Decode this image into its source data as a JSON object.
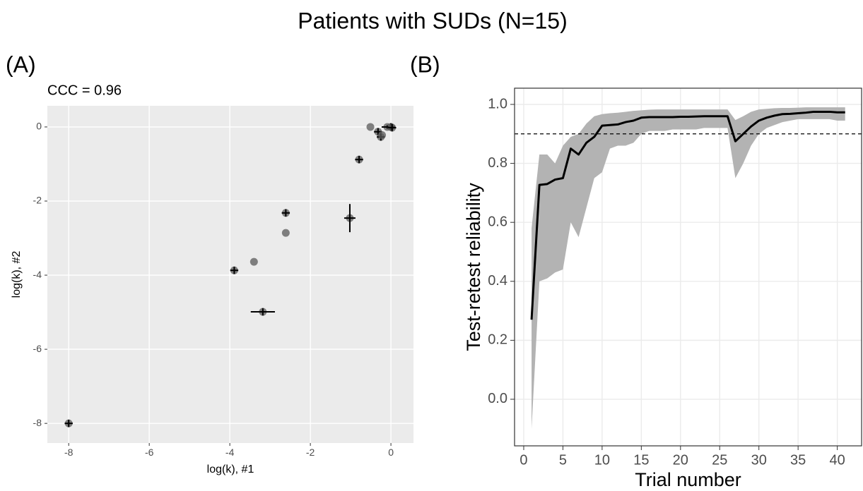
{
  "title": "Patients with SUDs (N=15)",
  "chart_data": [
    {
      "type": "scatter",
      "panel": "(A)",
      "subtitle": "CCC = 0.96",
      "x_label": "log(k), #1",
      "y_label": "log(k), #2",
      "x": [
        -8.0,
        -3.89,
        -3.4,
        -3.18,
        -2.61,
        -2.61,
        -1.02,
        -0.79,
        -0.51,
        -0.32,
        -0.25,
        -0.22,
        -0.09,
        0.0,
        0.03
      ],
      "y": [
        -8.0,
        -3.87,
        -3.64,
        -4.99,
        -2.32,
        -2.86,
        -2.46,
        -0.88,
        0.0,
        -0.13,
        -0.27,
        -0.22,
        0.0,
        0.0,
        -0.02
      ],
      "xerr": [
        0.1,
        0.1,
        0,
        0.3,
        0.1,
        0,
        0.14,
        0.1,
        0,
        0.1,
        0.1,
        0,
        0.14,
        0.1,
        0.1
      ],
      "yerr": [
        0.1,
        0.1,
        0,
        0.1,
        0.1,
        0,
        0.38,
        0.1,
        0,
        0.1,
        0.1,
        0,
        0.05,
        0.1,
        0.1
      ],
      "color": "#595959",
      "error_color": "#000000",
      "xlim": [
        -8.53,
        0.56
      ],
      "ylim": [
        -8.53,
        0.57
      ],
      "xticks": [
        -8,
        -6,
        -4,
        -2,
        0
      ],
      "yticks": [
        -8,
        -6,
        -4,
        -2,
        0
      ],
      "grid": true
    },
    {
      "type": "line",
      "panel": "(B)",
      "x_label": "Trial number",
      "y_label": "Test-retest reliability",
      "x": [
        1,
        2,
        3,
        4,
        5,
        6,
        7,
        8,
        9,
        10,
        11,
        12,
        13,
        14,
        15,
        16,
        17,
        18,
        19,
        20,
        21,
        22,
        23,
        24,
        25,
        26,
        27,
        28,
        29,
        30,
        31,
        32,
        33,
        34,
        35,
        36,
        37,
        38,
        39,
        40,
        41
      ],
      "series": [
        {
          "color": "#000000",
          "values": [
            0.27,
            0.727,
            0.73,
            0.745,
            0.75,
            0.85,
            0.83,
            0.87,
            0.89,
            0.928,
            0.93,
            0.932,
            0.94,
            0.945,
            0.955,
            0.957,
            0.957,
            0.957,
            0.957,
            0.958,
            0.958,
            0.959,
            0.96,
            0.96,
            0.96,
            0.96,
            0.875,
            0.9,
            0.925,
            0.945,
            0.955,
            0.962,
            0.967,
            0.968,
            0.97,
            0.972,
            0.975,
            0.975,
            0.975,
            0.973,
            0.973
          ]
        }
      ],
      "band": {
        "color": "#b3b3b3",
        "upper": [
          0.58,
          0.83,
          0.83,
          0.8,
          0.86,
          0.89,
          0.9,
          0.935,
          0.96,
          0.967,
          0.97,
          0.972,
          0.975,
          0.978,
          0.98,
          0.982,
          0.983,
          0.983,
          0.983,
          0.983,
          0.983,
          0.983,
          0.983,
          0.983,
          0.983,
          0.983,
          0.947,
          0.96,
          0.975,
          0.983,
          0.985,
          0.987,
          0.988,
          0.988,
          0.989,
          0.99,
          0.99,
          0.99,
          0.99,
          0.99,
          0.99
        ],
        "lower": [
          -0.1,
          0.4,
          0.41,
          0.43,
          0.44,
          0.6,
          0.55,
          0.65,
          0.75,
          0.77,
          0.85,
          0.86,
          0.86,
          0.87,
          0.9,
          0.91,
          0.91,
          0.91,
          0.915,
          0.915,
          0.915,
          0.915,
          0.92,
          0.92,
          0.92,
          0.92,
          0.75,
          0.8,
          0.86,
          0.9,
          0.92,
          0.93,
          0.94,
          0.945,
          0.95,
          0.95,
          0.95,
          0.95,
          0.95,
          0.945,
          0.945
        ]
      },
      "hline": 0.9,
      "xlim": [
        -1.17,
        43.1
      ],
      "ylim": [
        -0.158,
        1.055
      ],
      "xticks": [
        0,
        5,
        10,
        15,
        20,
        25,
        30,
        35,
        40
      ],
      "yticks": [
        {
          "value": 0,
          "label": "0.0"
        },
        0.2,
        0.4,
        0.6,
        0.8,
        {
          "value": 1,
          "label": "1.0"
        }
      ],
      "grid": true
    }
  ]
}
